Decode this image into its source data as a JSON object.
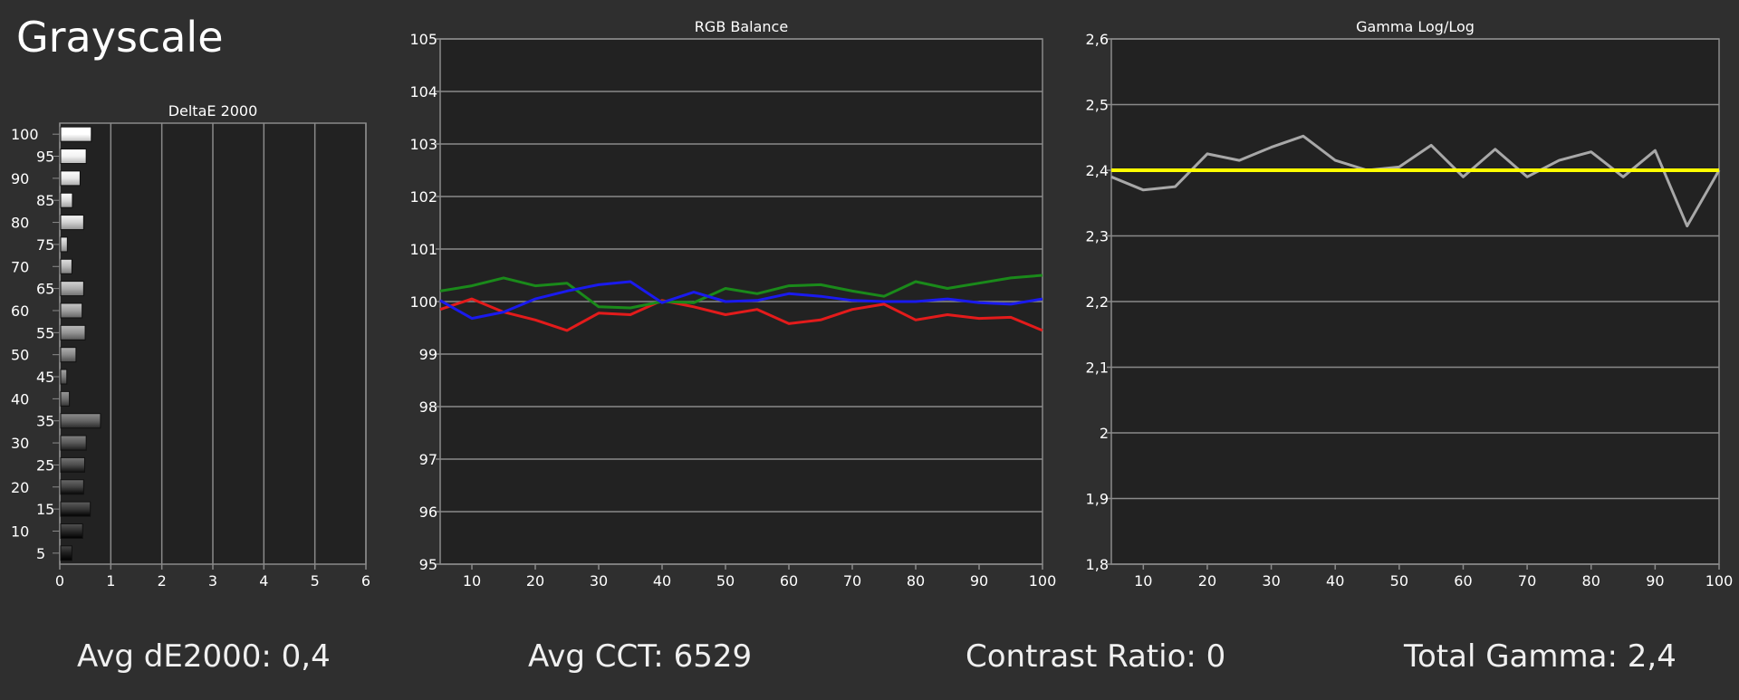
{
  "page": {
    "title": "Grayscale"
  },
  "colors": {
    "background": "#2f2f2f",
    "plot_bg": "#222222",
    "grid": "#8a8a8a",
    "red": "#e31b1b",
    "green": "#1a8a1a",
    "blue": "#1a1aee",
    "gamma_line": "#a8a8a8",
    "target_line": "#ffff00"
  },
  "stats": [
    {
      "label": "Avg dE2000:",
      "value": "0,4"
    },
    {
      "label": "Avg CCT:",
      "value": "6529"
    },
    {
      "label": "Contrast Ratio:",
      "value": "0"
    },
    {
      "label": "Total Gamma:",
      "value": "2,4"
    }
  ],
  "chart_data": [
    {
      "type": "bar",
      "orientation": "horizontal",
      "title": "DeltaE 2000",
      "categories": [
        "100",
        "95",
        "90",
        "85",
        "80",
        "75",
        "70",
        "65",
        "60",
        "55",
        "50",
        "45",
        "40",
        "35",
        "30",
        "25",
        "20",
        "15",
        "10",
        "5"
      ],
      "values": [
        0.6,
        0.5,
        0.38,
        0.23,
        0.45,
        0.13,
        0.22,
        0.45,
        0.42,
        0.48,
        0.3,
        0.12,
        0.17,
        0.78,
        0.5,
        0.47,
        0.45,
        0.58,
        0.43,
        0.22
      ],
      "xlim": [
        0,
        6
      ],
      "xticks": [
        "0",
        "1",
        "2",
        "3",
        "4",
        "5",
        "6"
      ],
      "grid": true
    },
    {
      "type": "line",
      "title": "RGB Balance",
      "x": [
        5,
        10,
        15,
        20,
        25,
        30,
        35,
        40,
        45,
        50,
        55,
        60,
        65,
        70,
        75,
        80,
        85,
        90,
        95,
        100
      ],
      "xticks": [
        "10",
        "20",
        "30",
        "40",
        "50",
        "60",
        "70",
        "80",
        "90",
        "100"
      ],
      "ylim": [
        95,
        105
      ],
      "yticks": [
        "95",
        "96",
        "97",
        "98",
        "99",
        "100",
        "101",
        "102",
        "103",
        "104",
        "105"
      ],
      "grid": true,
      "series": [
        {
          "color": "red",
          "values": [
            99.85,
            100.05,
            99.8,
            99.65,
            99.45,
            99.78,
            99.75,
            100.02,
            99.9,
            99.75,
            99.85,
            99.58,
            99.65,
            99.85,
            99.95,
            99.65,
            99.75,
            99.68,
            99.7,
            99.45
          ]
        },
        {
          "color": "green",
          "values": [
            100.2,
            100.3,
            100.45,
            100.3,
            100.35,
            99.9,
            99.88,
            100.0,
            99.98,
            100.25,
            100.15,
            100.3,
            100.32,
            100.2,
            100.1,
            100.38,
            100.25,
            100.35,
            100.45,
            100.5
          ]
        },
        {
          "color": "blue",
          "values": [
            100.02,
            99.68,
            99.8,
            100.05,
            100.2,
            100.32,
            100.38,
            99.98,
            100.18,
            100.0,
            100.02,
            100.15,
            100.1,
            100.02,
            100.0,
            100.0,
            100.05,
            99.98,
            99.95,
            100.05
          ]
        }
      ]
    },
    {
      "type": "line",
      "title": "Gamma Log/Log",
      "x": [
        5,
        10,
        15,
        20,
        25,
        30,
        35,
        40,
        45,
        50,
        55,
        60,
        65,
        70,
        75,
        80,
        85,
        90,
        95,
        100
      ],
      "xticks": [
        "10",
        "20",
        "30",
        "40",
        "50",
        "60",
        "70",
        "80",
        "90",
        "100"
      ],
      "ylim": [
        1.8,
        2.6
      ],
      "yticks": [
        "1,8",
        "1,9",
        "2",
        "2,1",
        "2,2",
        "2,3",
        "2,4",
        "2,5",
        "2,6"
      ],
      "grid": true,
      "series": [
        {
          "color": "gray",
          "values": [
            2.39,
            2.37,
            2.375,
            2.425,
            2.415,
            2.435,
            2.452,
            2.415,
            2.4,
            2.405,
            2.438,
            2.39,
            2.432,
            2.39,
            2.415,
            2.428,
            2.39,
            2.43,
            2.315,
            2.4
          ]
        },
        {
          "color": "yellow",
          "values": [
            2.4,
            2.4,
            2.4,
            2.4,
            2.4,
            2.4,
            2.4,
            2.4,
            2.4,
            2.4,
            2.4,
            2.4,
            2.4,
            2.4,
            2.4,
            2.4,
            2.4,
            2.4,
            2.4,
            2.4
          ]
        }
      ]
    }
  ]
}
